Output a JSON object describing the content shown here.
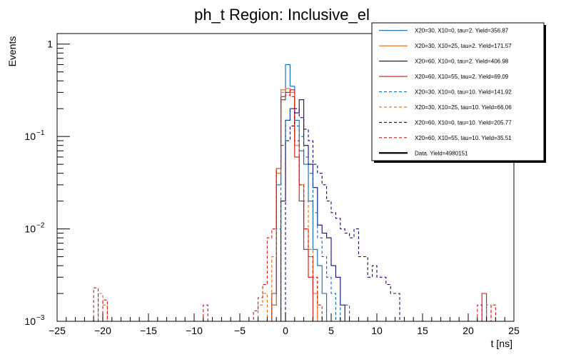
{
  "chart_data": {
    "type": "line",
    "title": "ph_t Region: Inclusive_el",
    "xlabel": "t [ns]",
    "ylabel": "Events",
    "xlim": [
      -25,
      25
    ],
    "ylim": [
      0.001,
      1.3
    ],
    "yscale": "log",
    "x_ticks": [
      -25,
      -20,
      -15,
      -10,
      -5,
      0,
      5,
      10,
      15,
      20,
      25
    ],
    "y_ticks": [
      {
        "value": 1,
        "base": "1",
        "exp": ""
      },
      {
        "value": 0.1,
        "base": "10",
        "exp": "−1"
      },
      {
        "value": 0.01,
        "base": "10",
        "exp": "−2"
      },
      {
        "value": 0.001,
        "base": "10",
        "exp": "−3"
      }
    ],
    "grid": false,
    "legend_position": "top-right",
    "bin_width": 0.5,
    "series": [
      {
        "name": "X20=30, X10=0, tau=2. Yield=356.87",
        "color": "#0a6ab5",
        "dash": false,
        "bins": [
          [
            -1.5,
            0.0015
          ],
          [
            -1,
            0.03
          ],
          [
            -0.5,
            0.25
          ],
          [
            0,
            0.6
          ],
          [
            0.5,
            0.35
          ],
          [
            1,
            0.15
          ],
          [
            1.5,
            0.07
          ],
          [
            2,
            0.05
          ],
          [
            2.5,
            0.02
          ],
          [
            3,
            0.006
          ],
          [
            3.5,
            0.004
          ],
          [
            4,
            0.002
          ],
          [
            4.5,
            0.001
          ]
        ]
      },
      {
        "name": "X20=30, X10=25, tau=2. Yield=171.57",
        "color": "#e8670c",
        "dash": false,
        "bins": [
          [
            -2,
            0.001
          ],
          [
            -1.5,
            0.0015
          ],
          [
            -1,
            0.04
          ],
          [
            -0.5,
            0.32
          ],
          [
            0,
            0.33
          ],
          [
            0.5,
            0.3
          ],
          [
            1,
            0.08
          ],
          [
            1.5,
            0.03
          ],
          [
            2,
            0.01
          ],
          [
            2.5,
            0.005
          ],
          [
            3,
            0.002
          ],
          [
            3.5,
            0.001
          ]
        ]
      },
      {
        "name": "X20=60, X10=0, tau=2. Yield=406.98",
        "color": "#0a0a78",
        "dash": false,
        "bins": [
          [
            -1,
            0.001
          ],
          [
            -0.5,
            0.02
          ],
          [
            0,
            0.15
          ],
          [
            0.5,
            0.2
          ],
          [
            1,
            0.18
          ],
          [
            1.5,
            0.25
          ],
          [
            2,
            0.08
          ],
          [
            2.5,
            0.05
          ],
          [
            3,
            0.028
          ],
          [
            3.5,
            0.011
          ],
          [
            4,
            0.009
          ],
          [
            4.5,
            0.008
          ],
          [
            5,
            0.004
          ],
          [
            5.5,
            0.003
          ],
          [
            6,
            0.0015
          ],
          [
            6.5,
            0.001
          ]
        ]
      },
      {
        "name": "X20=60, X10=55, tau=2. Yield=69.09",
        "color": "#d81010",
        "dash": false,
        "bins": [
          [
            -2,
            0.001
          ],
          [
            -1.5,
            0.002
          ],
          [
            -1,
            0.045
          ],
          [
            -0.5,
            0.27
          ],
          [
            0,
            0.3
          ],
          [
            0.5,
            0.32
          ],
          [
            1,
            0.06
          ],
          [
            1.5,
            0.02
          ],
          [
            2,
            0.006
          ],
          [
            2.5,
            0.003
          ],
          [
            3,
            0.001
          ],
          [
            21.5,
            0.002
          ],
          [
            22,
            0.001
          ]
        ]
      },
      {
        "name": "X20=30, X10=0, tau=10. Yield=141.92",
        "color": "#0a6ab5",
        "dash": true,
        "bins": [
          [
            -2,
            0.001
          ],
          [
            -1.5,
            0.002
          ],
          [
            -1,
            0.01
          ],
          [
            -0.5,
            0.08
          ],
          [
            0,
            0.15
          ],
          [
            0.5,
            0.2
          ],
          [
            1,
            0.13
          ],
          [
            1.5,
            0.1
          ],
          [
            2,
            0.06
          ],
          [
            2.5,
            0.04
          ],
          [
            3,
            0.015
          ],
          [
            3.5,
            0.008
          ],
          [
            4,
            0.005
          ],
          [
            4.5,
            0.003
          ],
          [
            5,
            0.002
          ],
          [
            5.5,
            0.001
          ],
          [
            6,
            0.0015
          ],
          [
            6.5,
            0.0015
          ],
          [
            7,
            0.001
          ]
        ]
      },
      {
        "name": "X20=30, X10=25, tau=10. Yield=66.06",
        "color": "#e8670c",
        "dash": true,
        "bins": [
          [
            -20.5,
            0.002
          ],
          [
            -20,
            0.0015
          ],
          [
            -9.5,
            0.001
          ],
          [
            -4,
            0.001
          ],
          [
            -3,
            0.0015
          ],
          [
            -2.5,
            0.002
          ],
          [
            -1.5,
            0.005
          ],
          [
            -1,
            0.045
          ],
          [
            -0.5,
            0.3
          ],
          [
            0,
            0.28
          ],
          [
            0.5,
            0.3
          ],
          [
            1,
            0.09
          ],
          [
            1.5,
            0.03
          ],
          [
            2,
            0.02
          ],
          [
            2.5,
            0.006
          ],
          [
            3,
            0.003
          ],
          [
            3.5,
            0.001
          ],
          [
            22,
            0.0015
          ],
          [
            22.5,
            0.001
          ]
        ]
      },
      {
        "name": "X20=60, X10=0, tau=10. Yield=205.77",
        "color": "#0a0a78",
        "dash": true,
        "bins": [
          [
            -0.5,
            0.001
          ],
          [
            0,
            0.09
          ],
          [
            0.5,
            0.13
          ],
          [
            1,
            0.2
          ],
          [
            1.5,
            0.16
          ],
          [
            2,
            0.12
          ],
          [
            2.5,
            0.09
          ],
          [
            3,
            0.05
          ],
          [
            3.5,
            0.04
          ],
          [
            4,
            0.03
          ],
          [
            4.5,
            0.02
          ],
          [
            5,
            0.015
          ],
          [
            5.5,
            0.013
          ],
          [
            6,
            0.01
          ],
          [
            6.5,
            0.009
          ],
          [
            7,
            0.008
          ],
          [
            7.5,
            0.01
          ],
          [
            8,
            0.005
          ],
          [
            8.5,
            0.005
          ],
          [
            9,
            0.003
          ],
          [
            9.5,
            0.004
          ],
          [
            10,
            0.003
          ],
          [
            10.5,
            0.003
          ],
          [
            11,
            0.0025
          ],
          [
            11.5,
            0.002
          ],
          [
            12,
            0.002
          ],
          [
            12.5,
            0.001
          ],
          [
            17.5,
            0.001
          ],
          [
            18,
            0.001
          ],
          [
            19,
            0.001
          ]
        ]
      },
      {
        "name": "X20=60, X10=55, tau=10. Yield=35.51",
        "color": "#d81010",
        "dash": true,
        "bins": [
          [
            -21,
            0.0023
          ],
          [
            -20,
            0.0017
          ],
          [
            -9,
            0.0015
          ],
          [
            -4.5,
            0.001
          ],
          [
            -3.5,
            0.0013
          ],
          [
            -3,
            0.0018
          ],
          [
            -2.5,
            0.0025
          ],
          [
            -2,
            0.008
          ],
          [
            -1.5,
            0.01
          ],
          [
            -1,
            0.045
          ],
          [
            -0.5,
            0.25
          ],
          [
            0,
            0.3
          ],
          [
            0.5,
            0.27
          ],
          [
            1,
            0.09
          ],
          [
            1.5,
            0.03
          ],
          [
            2,
            0.01
          ],
          [
            2.5,
            0.005
          ],
          [
            3,
            0.003
          ],
          [
            3.5,
            0.0015
          ],
          [
            4,
            0.001
          ],
          [
            21,
            0.0015
          ],
          [
            22.5,
            0.0015
          ]
        ]
      },
      {
        "name": "Data. Yield=4980151",
        "color": "#000000",
        "dash": false,
        "width": 2.2,
        "bins": []
      }
    ]
  }
}
